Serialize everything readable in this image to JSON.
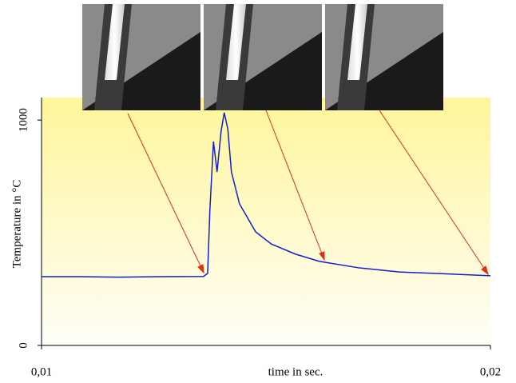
{
  "chart_data": {
    "type": "line",
    "x_label": "time in sec.",
    "y_label": "Temperature in °C",
    "xlim": [
      0.01,
      0.02
    ],
    "xticks": [
      {
        "value": 0.01,
        "label": "0,01"
      },
      {
        "value": 0.02,
        "label": "0,02"
      }
    ],
    "ylim": [
      0,
      1100
    ],
    "yticks": [
      0,
      1000
    ],
    "series": [
      {
        "name": "Temperature",
        "color": "#1020d0",
        "x": [
          0.01,
          0.01085,
          0.01174,
          0.01263,
          0.01361,
          0.0137,
          0.01375,
          0.01383,
          0.01391,
          0.014,
          0.01407,
          0.01415,
          0.01423,
          0.01441,
          0.01477,
          0.01512,
          0.01566,
          0.01619,
          0.01708,
          0.01797,
          0.01886,
          0.02
        ],
        "values": [
          305,
          305,
          303,
          305,
          306,
          320,
          600,
          905,
          770,
          950,
          1033,
          960,
          770,
          628,
          504,
          450,
          405,
          373,
          344,
          326,
          319,
          309
        ]
      }
    ]
  }
}
